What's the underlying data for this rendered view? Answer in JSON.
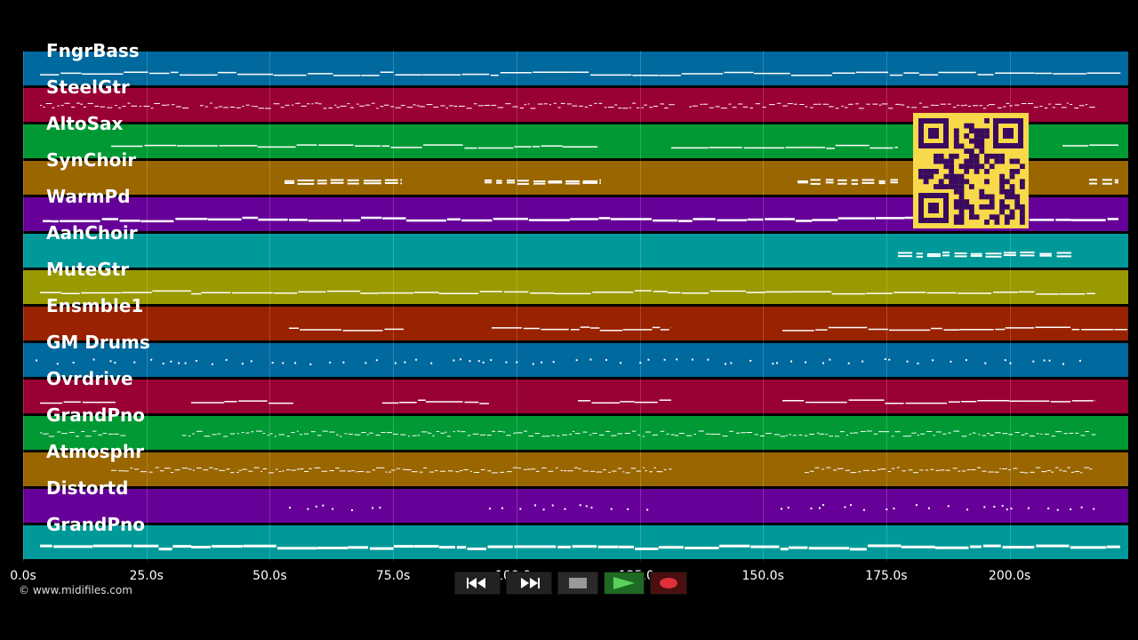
{
  "tracks": [
    {
      "label": "FngrBass",
      "color": "#00699e"
    },
    {
      "label": "SteelGtr",
      "color": "#990033"
    },
    {
      "label": "AltoSax",
      "color": "#009933"
    },
    {
      "label": "SynChoir",
      "color": "#996600"
    },
    {
      "label": "WarmPd",
      "color": "#660099"
    },
    {
      "label": "AahChoir",
      "color": "#009999"
    },
    {
      "label": "MuteGtr",
      "color": "#999900"
    },
    {
      "label": "Ensmble1",
      "color": "#992200"
    },
    {
      "label": "GM Drums",
      "color": "#00699e"
    },
    {
      "label": "Ovrdrive",
      "color": "#990033"
    },
    {
      "label": "GrandPno",
      "color": "#009933"
    },
    {
      "label": "Atmosphr",
      "color": "#996600"
    },
    {
      "label": "Distortd",
      "color": "#660099"
    },
    {
      "label": "GrandPno",
      "color": "#009999"
    }
  ],
  "timeline": {
    "ticks": [
      "0.0s",
      "25.0s",
      "50.0s",
      "75.0s",
      "100.0s",
      "125.0s",
      "150.0s",
      "175.0s",
      "200.0s"
    ],
    "max_seconds": 224
  },
  "copyright": "© www.midifiles.com",
  "transport": {
    "rewind_icon": "rewind-icon",
    "forward_icon": "fast-forward-icon",
    "stop_icon": "stop-icon",
    "play_icon": "play-icon",
    "record_icon": "record-icon"
  },
  "qr_icon": "qr-code-icon"
}
